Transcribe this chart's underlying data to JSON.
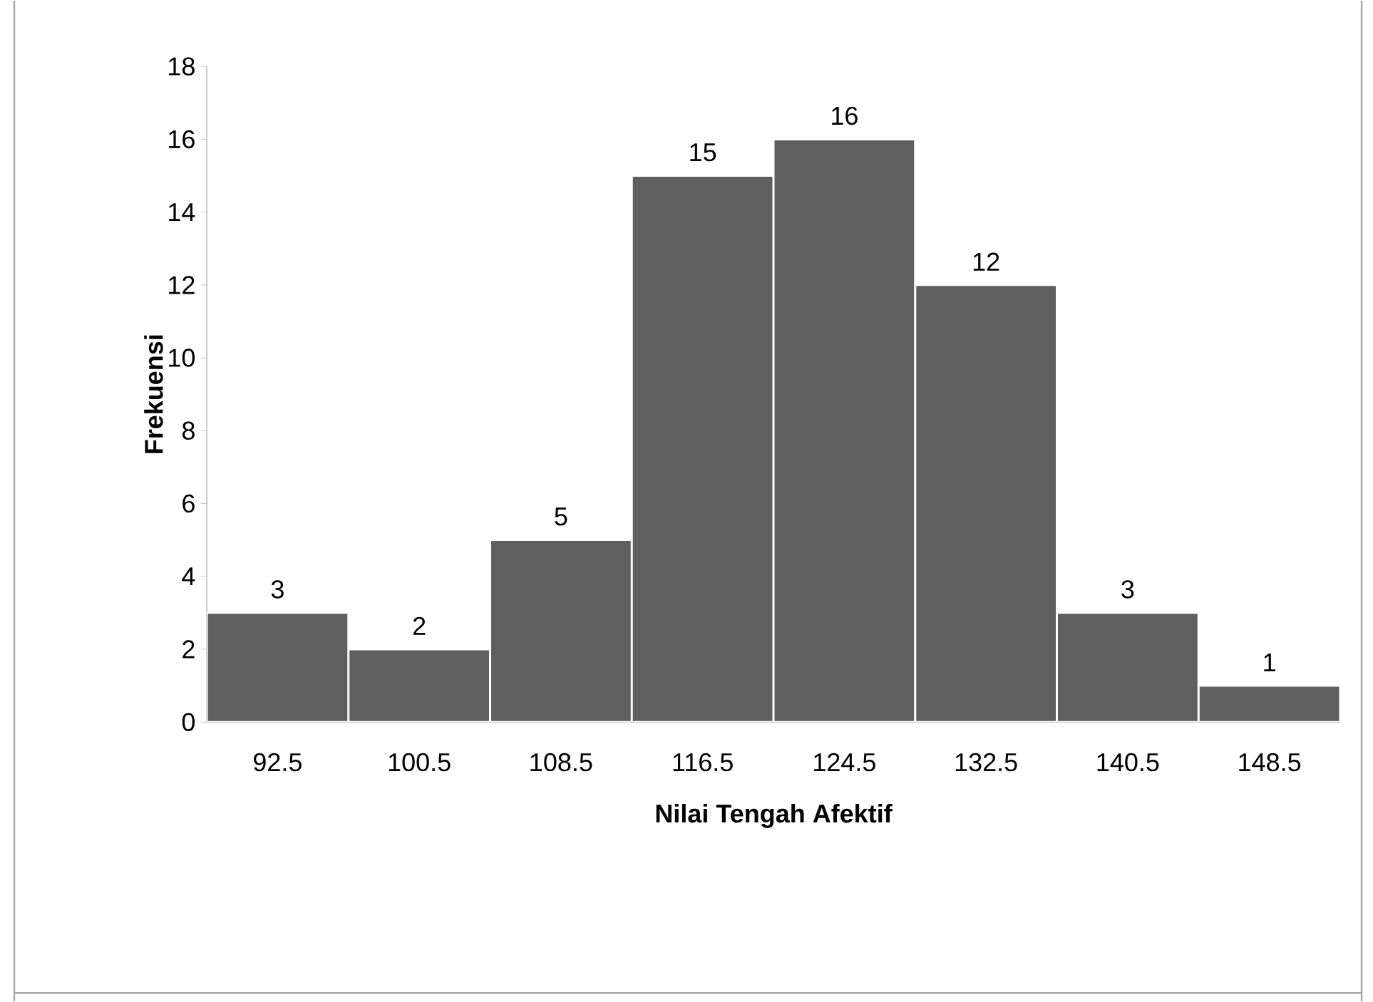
{
  "chart_data": {
    "type": "bar",
    "xlabel": "Nilai Tengah Afektif",
    "ylabel": "Frekuensi",
    "categories": [
      "92.5",
      "100.5",
      "108.5",
      "116.5",
      "124.5",
      "132.5",
      "140.5",
      "148.5"
    ],
    "values": [
      3,
      2,
      5,
      15,
      16,
      12,
      3,
      1
    ],
    "color": "#5f5f5f",
    "ylim": [
      0,
      18
    ],
    "yticks": [
      0,
      2,
      4,
      6,
      8,
      10,
      12,
      14,
      16,
      18
    ],
    "data_labels": true,
    "grid": false
  }
}
